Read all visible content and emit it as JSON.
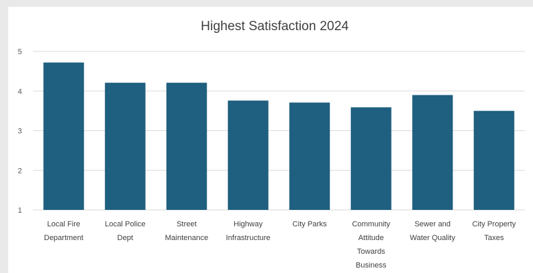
{
  "chart_data": {
    "type": "bar",
    "title": "Highest Satisfaction 2024",
    "xlabel": "",
    "ylabel": "",
    "categories": [
      "Local Fire Department",
      "Local Police Dept",
      "Street Maintenance",
      "Highway Infrastructure",
      "City Parks",
      "Community Attitude Towards Business",
      "Sewer and Water Quality",
      "City Property Taxes"
    ],
    "category_label_lines": [
      [
        "Local Fire",
        "Department"
      ],
      [
        "Local Police",
        "Dept"
      ],
      [
        "Street",
        "Maintenance"
      ],
      [
        "Highway",
        "Infrastructure"
      ],
      [
        "City Parks"
      ],
      [
        "Community",
        "Attitude",
        "Towards",
        "Business"
      ],
      [
        "Sewer and",
        "Water Quality"
      ],
      [
        "City Property",
        "Taxes"
      ]
    ],
    "values": [
      4.72,
      4.21,
      4.21,
      3.76,
      3.71,
      3.59,
      3.9,
      3.5
    ],
    "ylim": [
      1,
      5
    ],
    "yticks": [
      "1",
      "2",
      "3",
      "4",
      "5"
    ],
    "grid": true,
    "bar_color": "#1f5f7f"
  }
}
